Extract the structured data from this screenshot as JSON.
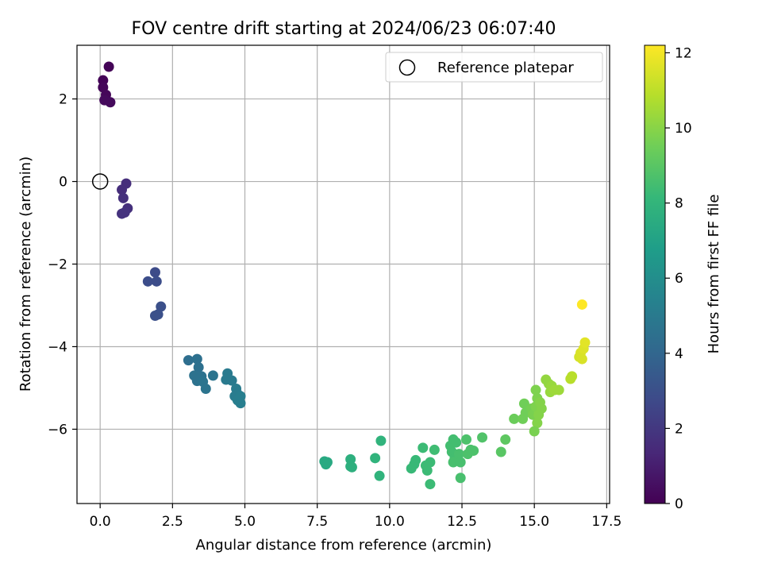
{
  "chart_data": {
    "type": "scatter",
    "title": "FOV centre drift starting at 2024/06/23 06:07:40",
    "xlabel": "Angular distance from reference (arcmin)",
    "ylabel": "Rotation from reference (arcmin)",
    "xlim": [
      -0.8,
      17.6
    ],
    "ylim": [
      -7.8,
      3.3
    ],
    "xticks": [
      0.0,
      2.5,
      5.0,
      7.5,
      10.0,
      12.5,
      15.0,
      17.5
    ],
    "xtick_labels": [
      "0.0",
      "2.5",
      "5.0",
      "7.5",
      "10.0",
      "12.5",
      "15.0",
      "17.5"
    ],
    "yticks": [
      2,
      0,
      -2,
      -4,
      -6
    ],
    "ytick_labels": [
      "2",
      "0",
      "−2",
      "−4",
      "−6"
    ],
    "grid": true,
    "legend": {
      "placement": "top-right",
      "entries": [
        "Reference platepar"
      ]
    },
    "reference_point": {
      "x": 0.0,
      "y": 0.0,
      "marker": "open-circle"
    },
    "colorbar": {
      "label": "Hours from first FF file",
      "range": [
        0,
        12.2
      ],
      "ticks": [
        0,
        2,
        4,
        6,
        8,
        10,
        12
      ],
      "tick_labels": [
        "0",
        "2",
        "4",
        "6",
        "8",
        "10",
        "12"
      ],
      "colormap": "viridis"
    },
    "points": [
      {
        "x": 0.3,
        "y": 2.78,
        "c": 0.1
      },
      {
        "x": 0.1,
        "y": 2.45,
        "c": 0.1
      },
      {
        "x": 0.1,
        "y": 2.28,
        "c": 0.2
      },
      {
        "x": 0.2,
        "y": 2.1,
        "c": 0.2
      },
      {
        "x": 0.15,
        "y": 1.97,
        "c": 0.3
      },
      {
        "x": 0.35,
        "y": 1.92,
        "c": 0.3
      },
      {
        "x": 0.9,
        "y": -0.05,
        "c": 1.6
      },
      {
        "x": 0.75,
        "y": -0.2,
        "c": 1.6
      },
      {
        "x": 0.8,
        "y": -0.4,
        "c": 1.7
      },
      {
        "x": 0.95,
        "y": -0.65,
        "c": 1.7
      },
      {
        "x": 0.85,
        "y": -0.75,
        "c": 1.8
      },
      {
        "x": 0.75,
        "y": -0.78,
        "c": 1.8
      },
      {
        "x": 1.9,
        "y": -2.2,
        "c": 2.8
      },
      {
        "x": 1.65,
        "y": -2.42,
        "c": 2.9
      },
      {
        "x": 1.95,
        "y": -2.42,
        "c": 2.9
      },
      {
        "x": 2.1,
        "y": -3.03,
        "c": 3.0
      },
      {
        "x": 2.0,
        "y": -3.22,
        "c": 3.0
      },
      {
        "x": 1.9,
        "y": -3.25,
        "c": 3.0
      },
      {
        "x": 3.05,
        "y": -4.33,
        "c": 4.4
      },
      {
        "x": 3.35,
        "y": -4.3,
        "c": 4.5
      },
      {
        "x": 3.4,
        "y": -4.5,
        "c": 4.5
      },
      {
        "x": 3.25,
        "y": -4.7,
        "c": 4.6
      },
      {
        "x": 3.5,
        "y": -4.72,
        "c": 4.6
      },
      {
        "x": 3.35,
        "y": -4.83,
        "c": 4.6
      },
      {
        "x": 3.55,
        "y": -4.85,
        "c": 4.7
      },
      {
        "x": 3.65,
        "y": -5.02,
        "c": 4.7
      },
      {
        "x": 3.9,
        "y": -4.7,
        "c": 4.7
      },
      {
        "x": 4.4,
        "y": -4.65,
        "c": 5.0
      },
      {
        "x": 4.35,
        "y": -4.8,
        "c": 5.0
      },
      {
        "x": 4.55,
        "y": -4.82,
        "c": 5.0
      },
      {
        "x": 4.7,
        "y": -5.02,
        "c": 5.1
      },
      {
        "x": 4.75,
        "y": -5.15,
        "c": 5.1
      },
      {
        "x": 4.65,
        "y": -5.2,
        "c": 5.1
      },
      {
        "x": 4.85,
        "y": -5.2,
        "c": 5.2
      },
      {
        "x": 4.75,
        "y": -5.3,
        "c": 5.2
      },
      {
        "x": 4.85,
        "y": -5.37,
        "c": 5.2
      },
      {
        "x": 7.75,
        "y": -6.78,
        "c": 7.4
      },
      {
        "x": 7.85,
        "y": -6.8,
        "c": 7.4
      },
      {
        "x": 7.8,
        "y": -6.85,
        "c": 7.4
      },
      {
        "x": 8.65,
        "y": -6.73,
        "c": 7.7
      },
      {
        "x": 8.65,
        "y": -6.9,
        "c": 7.7
      },
      {
        "x": 8.7,
        "y": -6.92,
        "c": 7.7
      },
      {
        "x": 9.5,
        "y": -6.7,
        "c": 7.9
      },
      {
        "x": 9.7,
        "y": -6.28,
        "c": 7.9
      },
      {
        "x": 9.65,
        "y": -7.13,
        "c": 7.9
      },
      {
        "x": 10.75,
        "y": -6.95,
        "c": 8.2
      },
      {
        "x": 10.9,
        "y": -6.75,
        "c": 8.2
      },
      {
        "x": 10.85,
        "y": -6.85,
        "c": 8.2
      },
      {
        "x": 11.15,
        "y": -6.45,
        "c": 8.3
      },
      {
        "x": 11.25,
        "y": -6.88,
        "c": 8.3
      },
      {
        "x": 11.3,
        "y": -7.0,
        "c": 8.3
      },
      {
        "x": 11.4,
        "y": -6.8,
        "c": 8.3
      },
      {
        "x": 11.4,
        "y": -7.33,
        "c": 8.3
      },
      {
        "x": 11.55,
        "y": -6.5,
        "c": 8.4
      },
      {
        "x": 12.1,
        "y": -6.4,
        "c": 8.5
      },
      {
        "x": 12.2,
        "y": -6.25,
        "c": 8.5
      },
      {
        "x": 12.3,
        "y": -6.32,
        "c": 8.5
      },
      {
        "x": 12.15,
        "y": -6.55,
        "c": 8.5
      },
      {
        "x": 12.25,
        "y": -6.7,
        "c": 8.5
      },
      {
        "x": 12.2,
        "y": -6.8,
        "c": 8.6
      },
      {
        "x": 12.4,
        "y": -6.6,
        "c": 8.6
      },
      {
        "x": 12.45,
        "y": -6.8,
        "c": 8.6
      },
      {
        "x": 12.65,
        "y": -6.25,
        "c": 8.7
      },
      {
        "x": 12.7,
        "y": -6.6,
        "c": 8.7
      },
      {
        "x": 12.8,
        "y": -6.5,
        "c": 8.7
      },
      {
        "x": 12.9,
        "y": -6.52,
        "c": 8.7
      },
      {
        "x": 12.45,
        "y": -7.18,
        "c": 8.6
      },
      {
        "x": 13.2,
        "y": -6.2,
        "c": 8.8
      },
      {
        "x": 13.85,
        "y": -6.55,
        "c": 9.0
      },
      {
        "x": 14.0,
        "y": -6.25,
        "c": 9.1
      },
      {
        "x": 14.3,
        "y": -5.75,
        "c": 9.4
      },
      {
        "x": 14.6,
        "y": -5.75,
        "c": 9.5
      },
      {
        "x": 14.65,
        "y": -5.38,
        "c": 9.5
      },
      {
        "x": 14.7,
        "y": -5.6,
        "c": 9.5
      },
      {
        "x": 14.9,
        "y": -5.5,
        "c": 9.6
      },
      {
        "x": 14.95,
        "y": -5.65,
        "c": 9.7
      },
      {
        "x": 15.05,
        "y": -5.05,
        "c": 9.8
      },
      {
        "x": 15.05,
        "y": -5.45,
        "c": 9.8
      },
      {
        "x": 15.1,
        "y": -5.25,
        "c": 9.8
      },
      {
        "x": 15.15,
        "y": -5.55,
        "c": 9.8
      },
      {
        "x": 15.2,
        "y": -5.35,
        "c": 9.9
      },
      {
        "x": 15.25,
        "y": -5.5,
        "c": 9.9
      },
      {
        "x": 15.1,
        "y": -5.85,
        "c": 9.9
      },
      {
        "x": 15.0,
        "y": -6.05,
        "c": 9.7
      },
      {
        "x": 15.15,
        "y": -5.65,
        "c": 9.9
      },
      {
        "x": 15.4,
        "y": -4.8,
        "c": 10.2
      },
      {
        "x": 15.5,
        "y": -4.9,
        "c": 10.2
      },
      {
        "x": 15.6,
        "y": -4.95,
        "c": 10.3
      },
      {
        "x": 15.55,
        "y": -5.1,
        "c": 10.3
      },
      {
        "x": 15.7,
        "y": -5.05,
        "c": 10.4
      },
      {
        "x": 15.85,
        "y": -5.05,
        "c": 10.4
      },
      {
        "x": 16.3,
        "y": -4.72,
        "c": 10.9
      },
      {
        "x": 16.25,
        "y": -4.78,
        "c": 10.9
      },
      {
        "x": 16.55,
        "y": -4.25,
        "c": 11.4
      },
      {
        "x": 16.6,
        "y": -4.15,
        "c": 11.5
      },
      {
        "x": 16.65,
        "y": -4.3,
        "c": 11.5
      },
      {
        "x": 16.7,
        "y": -4.05,
        "c": 11.6
      },
      {
        "x": 16.75,
        "y": -3.9,
        "c": 11.7
      },
      {
        "x": 16.65,
        "y": -2.98,
        "c": 12.2
      }
    ]
  }
}
